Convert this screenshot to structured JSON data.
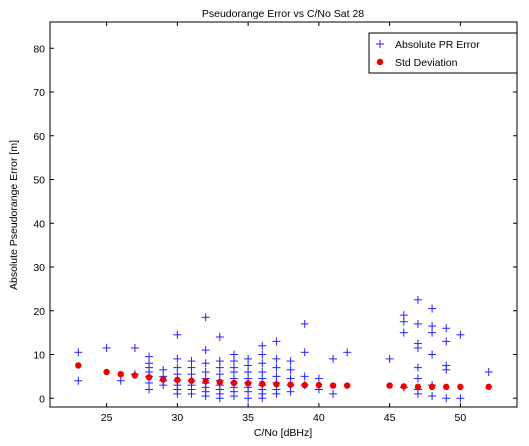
{
  "chart_data": {
    "type": "scatter",
    "title": "Pseudorange Error vs C/No Sat 28",
    "xlabel": "C/No [dBHz]",
    "ylabel": "Absolute Pseudorange Error [m]",
    "xlim": [
      21,
      54
    ],
    "ylim": [
      -2,
      86
    ],
    "xticks": [
      25,
      30,
      35,
      40,
      45,
      50
    ],
    "yticks": [
      0,
      10,
      20,
      30,
      40,
      50,
      60,
      70,
      80
    ],
    "grid": false,
    "legend_position": "top-right",
    "series": [
      {
        "name": "Absolute PR Error",
        "marker": "plus",
        "color": "#2222ff",
        "points": [
          [
            23,
            10.5
          ],
          [
            23,
            4.0
          ],
          [
            25,
            11.5
          ],
          [
            26,
            4.0
          ],
          [
            27,
            11.5
          ],
          [
            27,
            5.5
          ],
          [
            28,
            9.5
          ],
          [
            28,
            8.0
          ],
          [
            28,
            7.0
          ],
          [
            28,
            6.0
          ],
          [
            28,
            5.0
          ],
          [
            28,
            3.5
          ],
          [
            28,
            2.0
          ],
          [
            29,
            6.5
          ],
          [
            29,
            5.0
          ],
          [
            29,
            4.0
          ],
          [
            29,
            3.0
          ],
          [
            30,
            14.5
          ],
          [
            30,
            9.0
          ],
          [
            30,
            7.0
          ],
          [
            30,
            5.5
          ],
          [
            30,
            4.0
          ],
          [
            30,
            3.0
          ],
          [
            30,
            2.0
          ],
          [
            30,
            1.0
          ],
          [
            31,
            8.5
          ],
          [
            31,
            7.0
          ],
          [
            31,
            5.5
          ],
          [
            31,
            4.0
          ],
          [
            31,
            3.0
          ],
          [
            31,
            2.0
          ],
          [
            31,
            1.0
          ],
          [
            32,
            18.5
          ],
          [
            32,
            11.0
          ],
          [
            32,
            8.0
          ],
          [
            32,
            6.0
          ],
          [
            32,
            4.5
          ],
          [
            32,
            3.5
          ],
          [
            32,
            2.5
          ],
          [
            32,
            1.5
          ],
          [
            32,
            0.5
          ],
          [
            33,
            14.0
          ],
          [
            33,
            8.5
          ],
          [
            33,
            7.0
          ],
          [
            33,
            5.5
          ],
          [
            33,
            4.0
          ],
          [
            33,
            3.0
          ],
          [
            33,
            2.0
          ],
          [
            33,
            1.0
          ],
          [
            33,
            0.0
          ],
          [
            34,
            10.0
          ],
          [
            34,
            8.5
          ],
          [
            34,
            7.0
          ],
          [
            34,
            6.0
          ],
          [
            34,
            4.5
          ],
          [
            34,
            3.5
          ],
          [
            34,
            2.5
          ],
          [
            34,
            1.5
          ],
          [
            34,
            0.5
          ],
          [
            35,
            9.0
          ],
          [
            35,
            7.5
          ],
          [
            35,
            6.0
          ],
          [
            35,
            4.5
          ],
          [
            35,
            3.5
          ],
          [
            35,
            2.5
          ],
          [
            35,
            1.5
          ],
          [
            35,
            0.0
          ],
          [
            36,
            12.0
          ],
          [
            36,
            10.0
          ],
          [
            36,
            8.0
          ],
          [
            36,
            6.0
          ],
          [
            36,
            4.5
          ],
          [
            36,
            3.0
          ],
          [
            36,
            2.0
          ],
          [
            36,
            1.0
          ],
          [
            36,
            0.0
          ],
          [
            37,
            13.0
          ],
          [
            37,
            9.0
          ],
          [
            37,
            7.0
          ],
          [
            37,
            5.0
          ],
          [
            37,
            3.5
          ],
          [
            37,
            2.0
          ],
          [
            37,
            1.0
          ],
          [
            38,
            8.5
          ],
          [
            38,
            6.5
          ],
          [
            38,
            4.5
          ],
          [
            38,
            3.0
          ],
          [
            38,
            1.5
          ],
          [
            39,
            17.0
          ],
          [
            39,
            10.5
          ],
          [
            39,
            5.0
          ],
          [
            39,
            3.0
          ],
          [
            40,
            4.5
          ],
          [
            40,
            2.0
          ],
          [
            41,
            9.0
          ],
          [
            41,
            1.0
          ],
          [
            42,
            10.5
          ],
          [
            45,
            9.0
          ],
          [
            46,
            19.0
          ],
          [
            46,
            17.5
          ],
          [
            46,
            15.0
          ],
          [
            46,
            2.5
          ],
          [
            47,
            22.5
          ],
          [
            47,
            17.0
          ],
          [
            47,
            12.5
          ],
          [
            47,
            11.5
          ],
          [
            47,
            7.0
          ],
          [
            47,
            4.5
          ],
          [
            47,
            2.0
          ],
          [
            47,
            1.0
          ],
          [
            48,
            20.5
          ],
          [
            48,
            16.5
          ],
          [
            48,
            15.0
          ],
          [
            48,
            10.0
          ],
          [
            48,
            3.0
          ],
          [
            48,
            0.5
          ],
          [
            49,
            16.0
          ],
          [
            49,
            13.0
          ],
          [
            49,
            7.5
          ],
          [
            49,
            6.5
          ],
          [
            49,
            0.0
          ],
          [
            50,
            14.5
          ],
          [
            50,
            0.0
          ],
          [
            52,
            6.0
          ]
        ]
      },
      {
        "name": "Std Deviation",
        "marker": "dot",
        "color": "#ee0000",
        "points": [
          [
            23,
            7.5
          ],
          [
            25,
            6.0
          ],
          [
            26,
            5.5
          ],
          [
            27,
            5.2
          ],
          [
            28,
            4.8
          ],
          [
            29,
            4.3
          ],
          [
            30,
            4.2
          ],
          [
            31,
            4.0
          ],
          [
            32,
            3.9
          ],
          [
            33,
            3.7
          ],
          [
            34,
            3.5
          ],
          [
            35,
            3.4
          ],
          [
            36,
            3.3
          ],
          [
            37,
            3.2
          ],
          [
            38,
            3.1
          ],
          [
            39,
            3.0
          ],
          [
            40,
            3.0
          ],
          [
            41,
            2.9
          ],
          [
            42,
            2.9
          ],
          [
            45,
            2.9
          ],
          [
            46,
            2.7
          ],
          [
            47,
            2.6
          ],
          [
            48,
            2.6
          ],
          [
            49,
            2.6
          ],
          [
            50,
            2.6
          ],
          [
            52,
            2.6
          ]
        ]
      }
    ]
  }
}
